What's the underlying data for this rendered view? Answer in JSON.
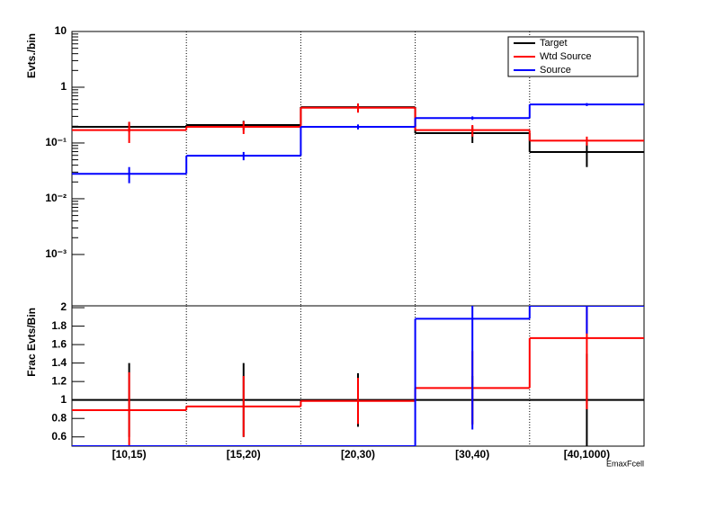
{
  "chart_data": [
    {
      "type": "step",
      "y_label": "Evts./bin",
      "log_y": true,
      "legend": "top-right",
      "ylim": [
        0.00012,
        10
      ],
      "yticks": [
        {
          "value": 0.001,
          "label": "10⁻³"
        },
        {
          "value": 0.01,
          "label": "10⁻²"
        },
        {
          "value": 0.1,
          "label": "10⁻¹"
        },
        1,
        10
      ],
      "series": [
        {
          "name": "Target",
          "color": "#000000",
          "values": [
            0.195,
            0.21,
            0.44,
            0.15,
            0.069
          ],
          "errors": [
            0.04,
            0.04,
            0.07,
            0.05,
            0.032
          ]
        },
        {
          "name": "Wtd Source",
          "color": "#ff0000",
          "values": [
            0.17,
            0.195,
            0.43,
            0.17,
            0.11
          ],
          "errors": [
            0.07,
            0.05,
            0.08,
            0.04,
            0.02
          ]
        },
        {
          "name": "Source",
          "color": "#0000ff",
          "values": [
            0.028,
            0.059,
            0.195,
            0.28,
            0.49
          ],
          "errors": [
            0.009,
            0.01,
            0.02,
            0.02,
            0.03
          ]
        }
      ]
    },
    {
      "type": "step",
      "y_label": "Frac Evts/Bin",
      "x_label": "EmaxFcell",
      "log_y": false,
      "categories": [
        "[10,15)",
        "[15,20)",
        "[20,30)",
        "[30,40)",
        "[40,1000)"
      ],
      "ylim": [
        0.5,
        2.02
      ],
      "yticks": [
        0.6,
        0.8,
        1,
        1.2,
        1.4,
        1.6,
        1.8,
        2
      ],
      "series": [
        {
          "name": "Target",
          "color": "#000000",
          "values": [
            1,
            1,
            1,
            1,
            1
          ],
          "errors": [
            0.4,
            0.4,
            0.29,
            0.26,
            0.5
          ]
        },
        {
          "name": "Wtd Source",
          "color": "#ff0000",
          "values": [
            0.89,
            0.93,
            0.99,
            1.13,
            1.67
          ],
          "errors": [
            0.41,
            0.33,
            0.25,
            0.4,
            0.77
          ]
        },
        {
          "name": "Source",
          "color": "#0000ff",
          "values": [
            0.5,
            0.5,
            0.5,
            1.88,
            2.02
          ],
          "errors": [
            0,
            0,
            0,
            1.2,
            0.3
          ]
        }
      ]
    }
  ]
}
